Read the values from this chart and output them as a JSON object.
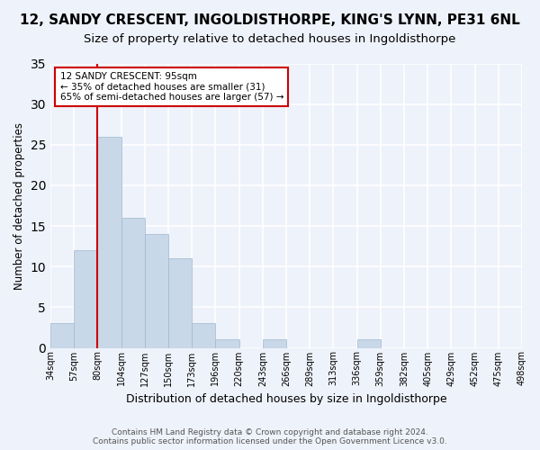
{
  "title": "12, SANDY CRESCENT, INGOLDISTHORPE, KING'S LYNN, PE31 6NL",
  "subtitle": "Size of property relative to detached houses in Ingoldisthorpe",
  "xlabel": "Distribution of detached houses by size in Ingoldisthorpe",
  "ylabel": "Number of detached properties",
  "bar_color": "#c8d8e8",
  "bar_edge_color": "#a0b8d0",
  "annotation_line_color": "#cc0000",
  "annotation_box_edge": "#cc0000",
  "counts": [
    3,
    12,
    26,
    16,
    14,
    11,
    3,
    1,
    0,
    1,
    0,
    0,
    0,
    1,
    0,
    0,
    0,
    0,
    0,
    0
  ],
  "tick_labels": [
    "34sqm",
    "57sqm",
    "80sqm",
    "104sqm",
    "127sqm",
    "150sqm",
    "173sqm",
    "196sqm",
    "220sqm",
    "243sqm",
    "266sqm",
    "289sqm",
    "313sqm",
    "336sqm",
    "359sqm",
    "382sqm",
    "405sqm",
    "429sqm",
    "452sqm",
    "475sqm",
    "498sqm"
  ],
  "property_label": "12 SANDY CRESCENT: 95sqm",
  "annotation_line1": "← 35% of detached houses are smaller (31)",
  "annotation_line2": "65% of semi-detached houses are larger (57) →",
  "ylim": [
    0,
    35
  ],
  "yticks": [
    0,
    5,
    10,
    15,
    20,
    25,
    30,
    35
  ],
  "footer_line1": "Contains HM Land Registry data © Crown copyright and database right 2024.",
  "footer_line2": "Contains public sector information licensed under the Open Government Licence v3.0.",
  "bg_color": "#eef2fa",
  "grid_color": "#ffffff",
  "title_fontsize": 11,
  "subtitle_fontsize": 9.5
}
